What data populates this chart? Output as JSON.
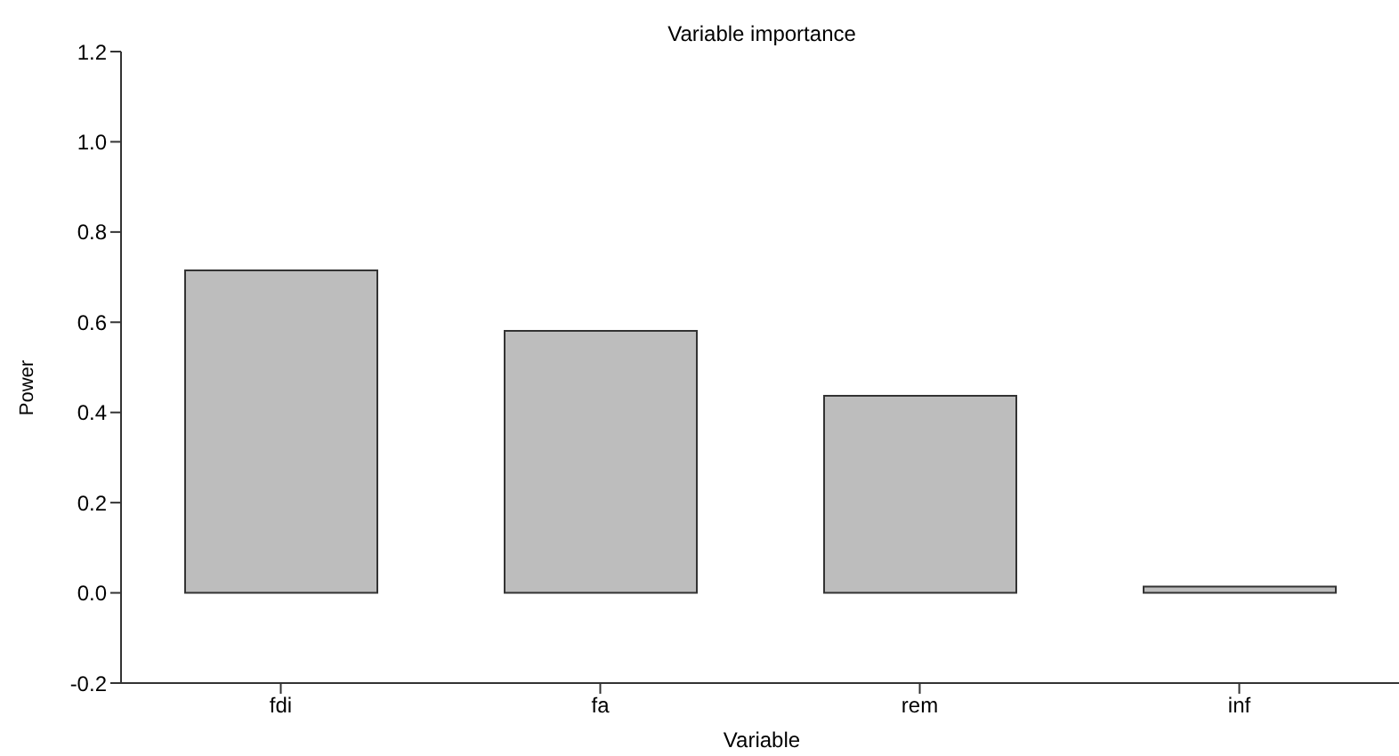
{
  "chart_data": {
    "type": "bar",
    "title": "Variable importance",
    "xlabel": "Variable",
    "ylabel": "Power",
    "categories": [
      "fdi",
      "fa",
      "rem",
      "inf"
    ],
    "values": [
      0.715,
      0.581,
      0.437,
      0.014
    ],
    "color": "#bdbdbd",
    "ylim": [
      -0.2,
      1.2
    ],
    "yticks": [
      {
        "value": -0.2,
        "label": "-0.2"
      },
      {
        "value": 0,
        "label": "0.0"
      },
      {
        "value": 0.2,
        "label": "0.2"
      },
      {
        "value": 0.4,
        "label": "0.4"
      },
      {
        "value": 0.6,
        "label": "0.6"
      },
      {
        "value": 0.8,
        "label": "0.8"
      },
      {
        "value": 1,
        "label": "1.0"
      },
      {
        "value": 1.2,
        "label": "1.2"
      }
    ],
    "grid": false,
    "legend": false
  }
}
